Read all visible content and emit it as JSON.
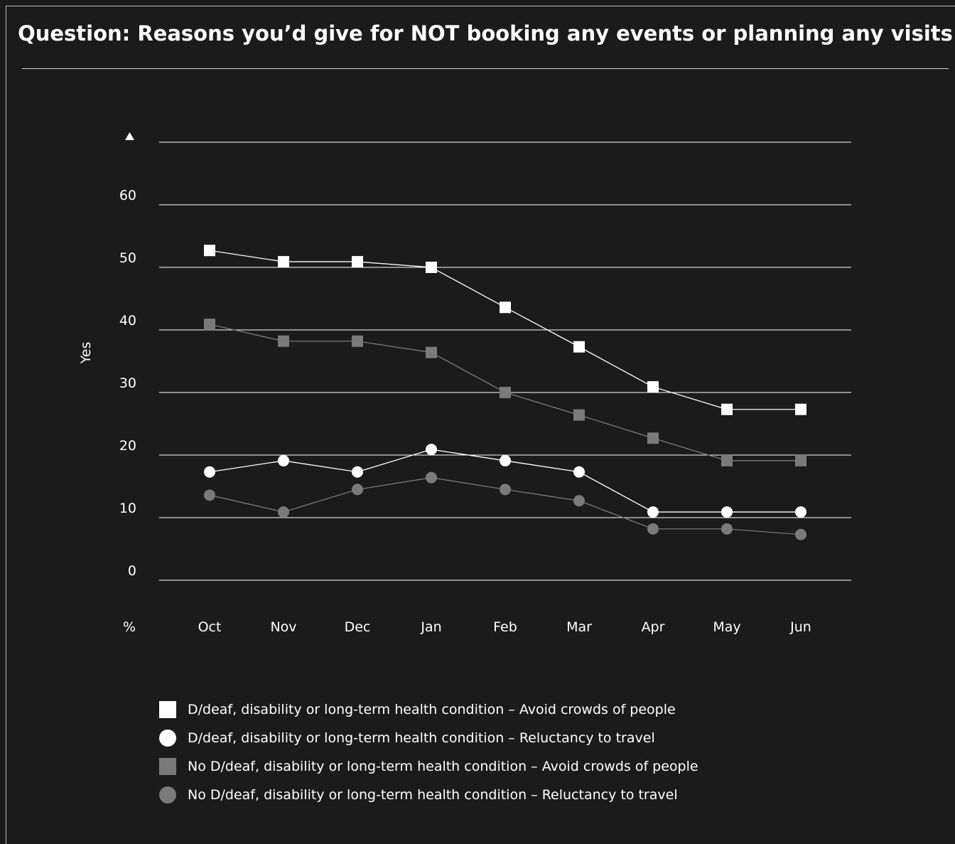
{
  "title": "Question: Reasons you’d give for NOT booking any events or planning any visits",
  "colors": {
    "background": "#1b1b1b",
    "white": "#ffffff",
    "grey": "#7a7a7a",
    "grid": "#ffffff"
  },
  "chart_data": {
    "type": "line",
    "title": "Question: Reasons you’d give for NOT booking any events or planning any visits",
    "ylabel": "Yes",
    "y_unit_label": "%",
    "ylim": [
      0,
      70
    ],
    "yticks": [
      0,
      10,
      20,
      30,
      40,
      50,
      60
    ],
    "grid": true,
    "legend_position": "bottom",
    "categories": [
      "Oct",
      "Nov",
      "Dec",
      "Jan",
      "Feb",
      "Mar",
      "Apr",
      "May",
      "Jun"
    ],
    "series": [
      {
        "name": "D/deaf, disability or long-term health condition – Avoid crowds of people",
        "marker": "square",
        "color": "#ffffff",
        "values": [
          52.7,
          50.9,
          50.9,
          50.0,
          43.6,
          37.3,
          30.9,
          27.3,
          27.3
        ]
      },
      {
        "name": "D/deaf, disability or long-term health condition – Reluctancy to travel",
        "marker": "circle",
        "color": "#ffffff",
        "values": [
          17.3,
          19.1,
          17.3,
          20.9,
          19.1,
          17.3,
          10.9,
          10.9,
          10.9
        ]
      },
      {
        "name": "No D/deaf, disability or long-term health condition – Avoid crowds of people",
        "marker": "square",
        "color": "#7a7a7a",
        "values": [
          40.9,
          38.2,
          38.2,
          36.4,
          30.0,
          26.4,
          22.7,
          19.1,
          19.1
        ]
      },
      {
        "name": "No D/deaf, disability or long-term health condition – Reluctancy to travel",
        "marker": "circle",
        "color": "#7a7a7a",
        "values": [
          13.6,
          10.9,
          14.5,
          16.4,
          14.5,
          12.7,
          8.2,
          8.2,
          7.3
        ]
      }
    ]
  }
}
